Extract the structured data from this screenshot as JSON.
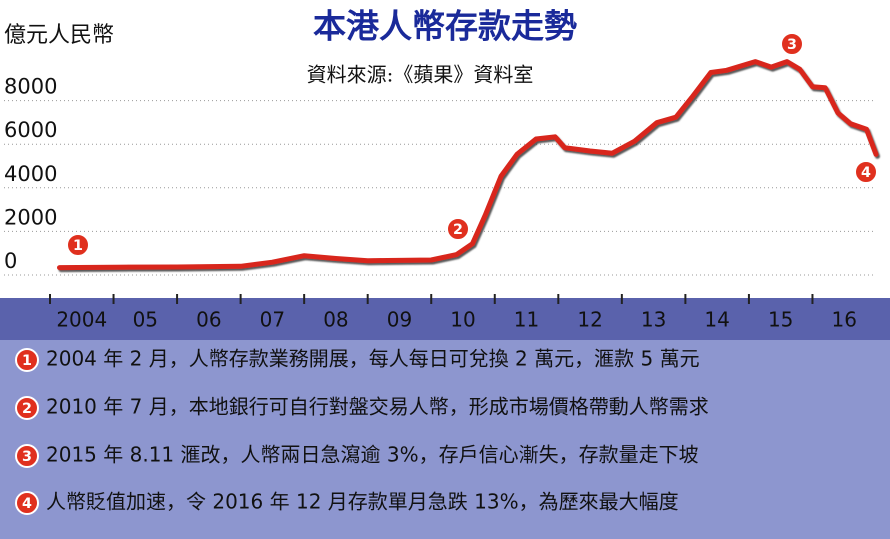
{
  "chart_data": {
    "type": "line",
    "title": "本港人幣存款走勢",
    "subtitle": "資料來源:《蘋果》資料室",
    "y_label": "億元人民幣",
    "color": "#d8261d",
    "x": [
      2004.15,
      2005.0,
      2006.0,
      2007.0,
      2007.5,
      2008.0,
      2008.5,
      2009.0,
      2010.0,
      2010.4,
      2010.65,
      2010.85,
      2011.1,
      2011.35,
      2011.65,
      2011.95,
      2012.1,
      2012.5,
      2012.85,
      2013.2,
      2013.55,
      2013.85,
      2014.1,
      2014.4,
      2014.65,
      2015.1,
      2015.35,
      2015.6,
      2015.8,
      2016.0,
      2016.2,
      2016.4,
      2016.6,
      2016.85,
      2017.0
    ],
    "values": [
      200,
      220,
      230,
      260,
      450,
      750,
      620,
      520,
      550,
      800,
      1300,
      2600,
      4400,
      5400,
      6100,
      6200,
      5700,
      5550,
      5450,
      6000,
      6850,
      7100,
      8000,
      9150,
      9250,
      9650,
      9400,
      9650,
      9300,
      8500,
      8450,
      7300,
      6800,
      6550,
      5400
    ],
    "xlim": [
      2004,
      2017
    ],
    "ylim": [
      0,
      10000
    ],
    "xticks": [
      {
        "value": 2004,
        "label": "2004"
      },
      {
        "value": 2005,
        "label": "05"
      },
      {
        "value": 2006,
        "label": "06"
      },
      {
        "value": 2007,
        "label": "07"
      },
      {
        "value": 2008,
        "label": "08"
      },
      {
        "value": 2009,
        "label": "09"
      },
      {
        "value": 2010,
        "label": "10"
      },
      {
        "value": 2011,
        "label": "11"
      },
      {
        "value": 2012,
        "label": "12"
      },
      {
        "value": 2013,
        "label": "13"
      },
      {
        "value": 2014,
        "label": "14"
      },
      {
        "value": 2015,
        "label": "15"
      },
      {
        "value": 2016,
        "label": "16"
      }
    ],
    "yticks": [
      0,
      2000,
      4000,
      6000,
      8000
    ],
    "grid": true,
    "annotations": [
      {
        "label": "1",
        "text": "2004 年 2 月，人幣存款業務開展，每人每日可兌換 2 萬元，滙款 5 萬元"
      },
      {
        "label": "2",
        "text": "2010 年 7 月，本地銀行可自行對盤交易人幣，形成市場價格帶動人幣需求"
      },
      {
        "label": "3",
        "text": "2015 年 8.11 滙改，人幣兩日急瀉逾 3%，存戶信心漸失，存款量走下坡"
      },
      {
        "label": "4",
        "text": "人幣貶值加速，令 2016 年 12 月存款單月急跌 13%，為歷來最大幅度"
      }
    ]
  }
}
